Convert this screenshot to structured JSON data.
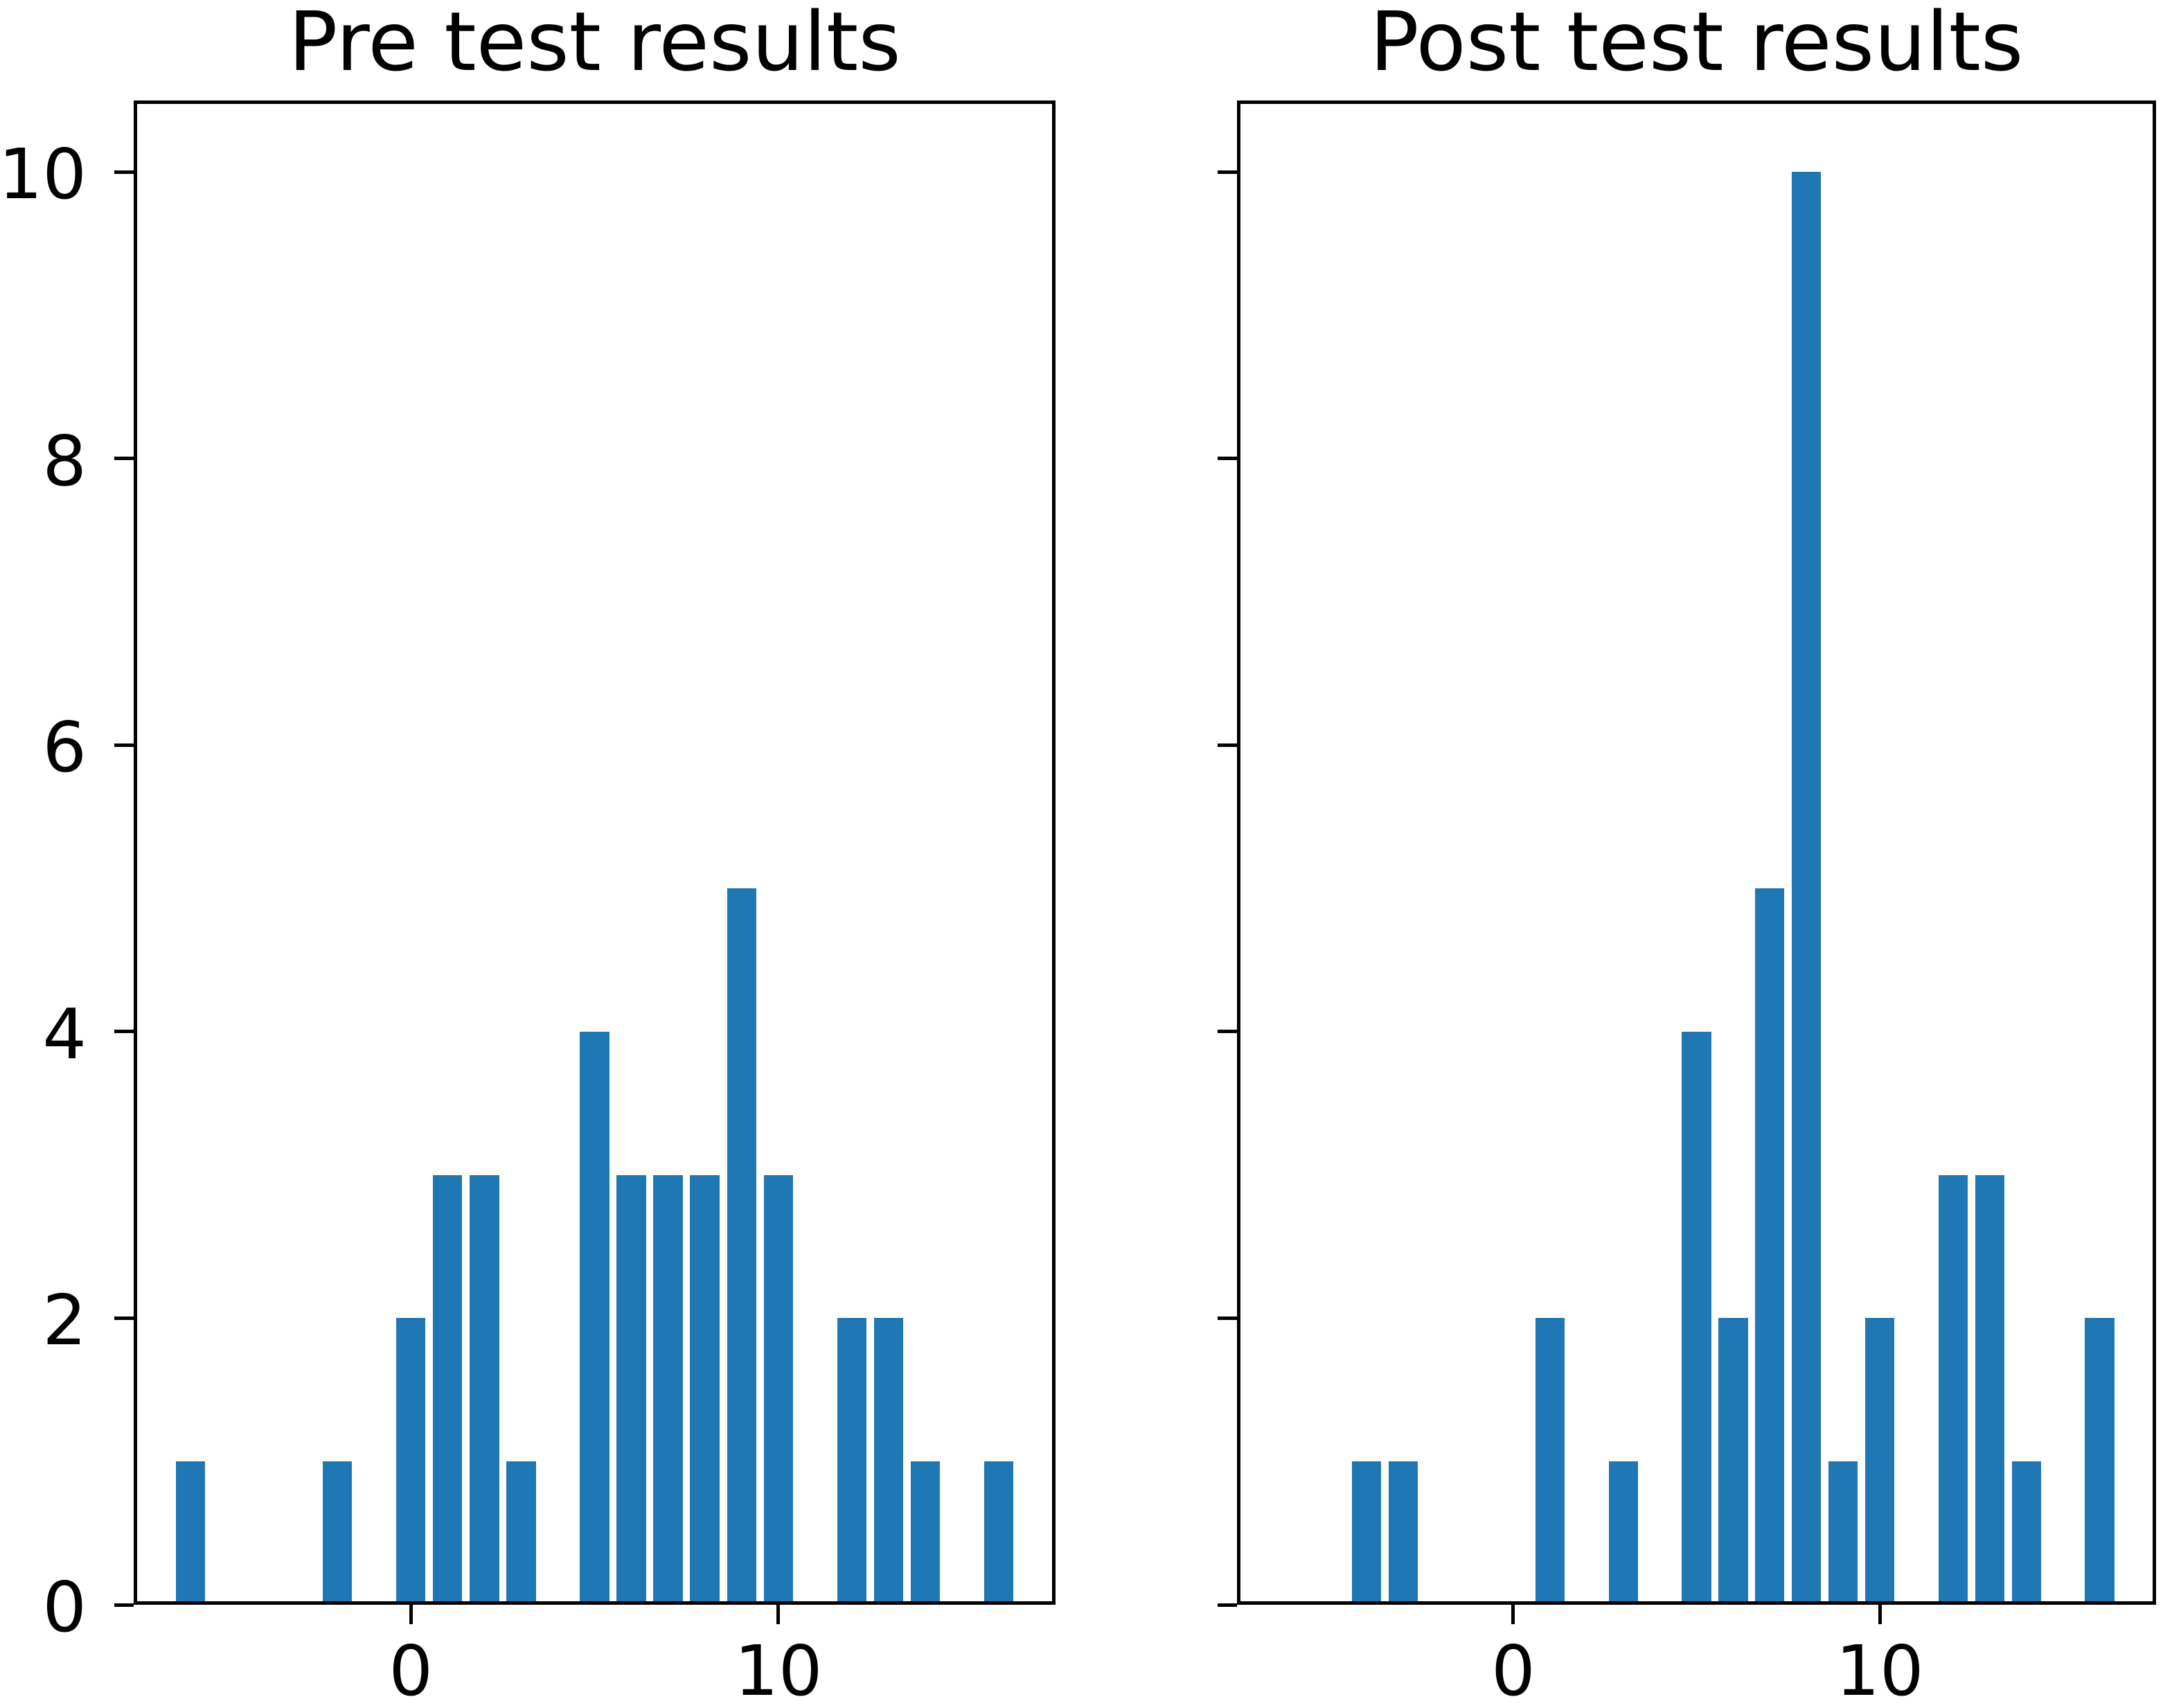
{
  "figure": {
    "background_color": "#ffffff",
    "bar_color": "#1f77b4",
    "axis_color": "#000000",
    "text_color": "#000000"
  },
  "chart_data": [
    {
      "type": "bar",
      "title": "Pre test results",
      "x": [
        -6,
        -2,
        0,
        1,
        2,
        3,
        5,
        6,
        7,
        8,
        9,
        10,
        12,
        13,
        14,
        16
      ],
      "values": [
        1,
        1,
        2,
        3,
        3,
        1,
        4,
        3,
        3,
        3,
        5,
        3,
        2,
        2,
        1,
        1
      ],
      "total_count": 38,
      "bar_width": 0.8,
      "xlabel": "",
      "ylabel": "",
      "xlim": [
        -7.54,
        17.54
      ],
      "ylim": [
        0,
        10.5
      ],
      "xticks": [
        0,
        10
      ],
      "yticks": [
        0,
        2,
        4,
        6,
        8,
        10
      ],
      "show_ytick_labels": true,
      "grid": false,
      "legend": null
    },
    {
      "type": "bar",
      "title": "Post test results",
      "x": [
        -4,
        -3,
        1,
        3,
        5,
        6,
        7,
        8,
        9,
        10,
        12,
        13,
        14,
        16
      ],
      "values": [
        1,
        1,
        2,
        1,
        4,
        2,
        5,
        10,
        1,
        2,
        3,
        3,
        1,
        2
      ],
      "total_count": 38,
      "bar_width": 0.8,
      "xlabel": "",
      "ylabel": "",
      "xlim": [
        -7.54,
        17.54
      ],
      "ylim": [
        0,
        10.5
      ],
      "xticks": [
        0,
        10
      ],
      "yticks": [
        0,
        2,
        4,
        6,
        8,
        10
      ],
      "show_ytick_labels": false,
      "grid": false,
      "legend": null
    }
  ]
}
